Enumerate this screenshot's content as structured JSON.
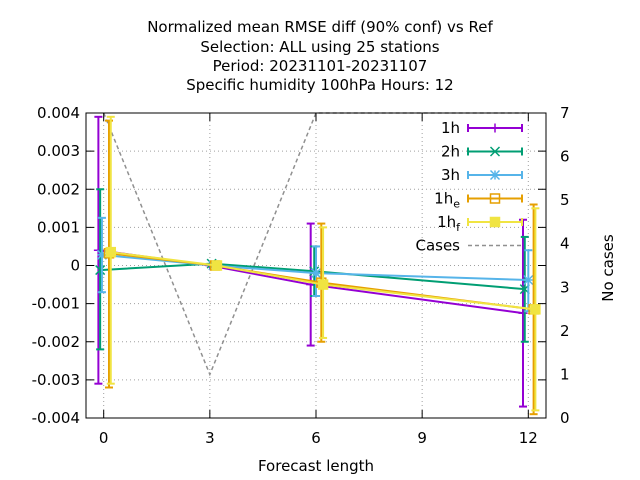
{
  "chart_data": {
    "type": "line",
    "title_lines": [
      "Normalized mean RMSE diff (90% conf) vs Ref",
      "Selection: ALL using    25 stations",
      "Period: 20231101-20231107",
      "Specific humidity 100hPa   Hours:  12"
    ],
    "xlabel": "Forecast length",
    "ylabel": "",
    "y2label": "No cases",
    "xlim": [
      -0.5,
      12.5
    ],
    "ylim": [
      -0.004,
      0.004
    ],
    "y2lim": [
      0,
      7
    ],
    "x_ticks": [
      0,
      3,
      6,
      9,
      12
    ],
    "y_ticks": [
      "0.004",
      "0.003",
      "0.002",
      "0.001",
      "0",
      "-0.001",
      "-0.002",
      "-0.003",
      "-0.004"
    ],
    "y_tick_values": [
      0.004,
      0.003,
      0.002,
      0.001,
      0,
      -0.001,
      -0.002,
      -0.003,
      -0.004
    ],
    "y2_ticks": [
      "0",
      "1",
      "2",
      "3",
      "4",
      "5",
      "6",
      "7"
    ],
    "y2_tick_values": [
      0,
      1,
      2,
      3,
      4,
      5,
      6,
      7
    ],
    "grid": true,
    "legend_position": "top-right",
    "series": [
      {
        "name": "1h",
        "sub": "",
        "color": "#9400d3",
        "marker": "plus",
        "points": [
          {
            "x": -0.15,
            "y": 0.0004,
            "lo": -0.0031,
            "hi": 0.0039
          },
          {
            "x": 3.0,
            "y": 0.0,
            "lo": 0.0,
            "hi": 0.0
          },
          {
            "x": 5.85,
            "y": -0.0005,
            "lo": -0.0021,
            "hi": 0.0011
          },
          {
            "x": 11.85,
            "y": -0.00125,
            "lo": -0.0037,
            "hi": 0.0012
          }
        ]
      },
      {
        "name": "2h",
        "sub": "",
        "color": "#009e73",
        "marker": "cross",
        "points": [
          {
            "x": -0.1,
            "y": -0.00012,
            "lo": -0.0022,
            "hi": 0.002
          },
          {
            "x": 3.05,
            "y": 5e-05,
            "lo": 5e-05,
            "hi": 5e-05
          },
          {
            "x": 5.95,
            "y": -0.00015,
            "lo": -0.0008,
            "hi": 0.0005
          },
          {
            "x": 11.9,
            "y": -0.00062,
            "lo": -0.002,
            "hi": 0.00075
          }
        ]
      },
      {
        "name": "3h",
        "sub": "",
        "color": "#56b4e9",
        "marker": "star",
        "points": [
          {
            "x": -0.05,
            "y": 0.00028,
            "lo": -0.0007,
            "hi": 0.00125
          },
          {
            "x": 3.1,
            "y": 0.0,
            "lo": 0.0,
            "hi": 0.0
          },
          {
            "x": 6.0,
            "y": -0.0002,
            "lo": -0.0008,
            "hi": 0.0005
          },
          {
            "x": 12.0,
            "y": -0.00038,
            "lo": -0.0012,
            "hi": 0.0004
          }
        ]
      },
      {
        "name": "1h",
        "sub": "e",
        "color": "#e69f00",
        "marker": "square",
        "points": [
          {
            "x": 0.15,
            "y": 0.00032,
            "lo": -0.0032,
            "hi": 0.0038
          },
          {
            "x": 3.15,
            "y": 0.0,
            "lo": 0.0,
            "hi": 0.0
          },
          {
            "x": 6.15,
            "y": -0.00045,
            "lo": -0.002,
            "hi": 0.0011
          },
          {
            "x": 12.15,
            "y": -0.00115,
            "lo": -0.0039,
            "hi": 0.0016
          }
        ]
      },
      {
        "name": "1h",
        "sub": "f",
        "color": "#f0e442",
        "marker": "filled-square",
        "points": [
          {
            "x": 0.2,
            "y": 0.00035,
            "lo": -0.0031,
            "hi": 0.0039
          },
          {
            "x": 3.2,
            "y": 0.0,
            "lo": 0.0,
            "hi": 0.0
          },
          {
            "x": 6.2,
            "y": -0.0005,
            "lo": -0.0019,
            "hi": 0.001
          },
          {
            "x": 12.2,
            "y": -0.00115,
            "lo": -0.0038,
            "hi": 0.0015
          }
        ]
      }
    ],
    "cases": {
      "name": "Cases",
      "color": "#909090",
      "axis": "y2",
      "x": [
        0,
        3,
        6,
        12
      ],
      "y": [
        7,
        1,
        7,
        7
      ]
    }
  }
}
